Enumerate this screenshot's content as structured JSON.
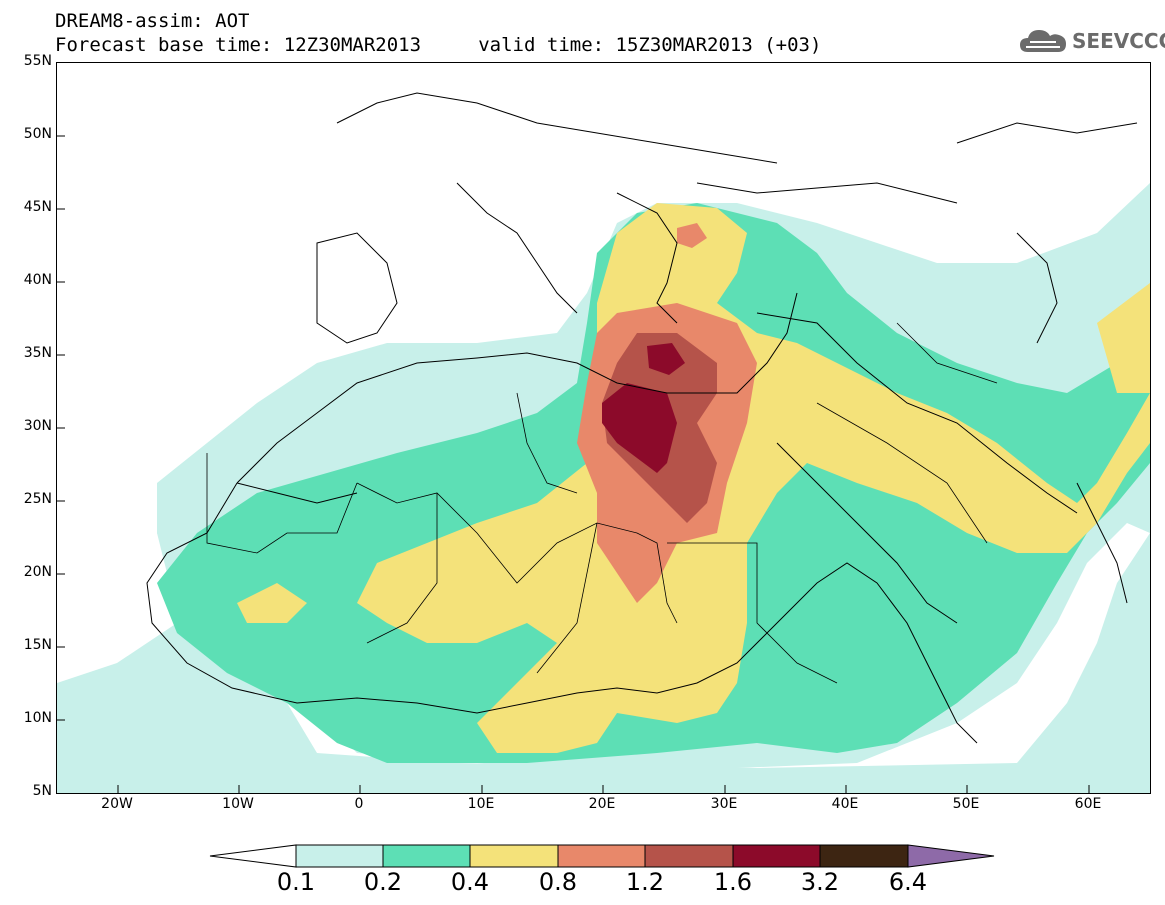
{
  "title": {
    "line1": "DREAM8-assim: AOT",
    "line2": "Forecast base time: 12Z30MAR2013     valid time: 15Z30MAR2013 (+03)"
  },
  "logo": {
    "text": "SEEVCCC",
    "icon": "cloud-logo-icon"
  },
  "map": {
    "lat_labels": [
      "55N",
      "50N",
      "45N",
      "40N",
      "35N",
      "30N",
      "25N",
      "20N",
      "15N",
      "10N",
      "5N"
    ],
    "lon_labels": [
      "20W",
      "10W",
      "0",
      "10E",
      "20E",
      "30E",
      "40E",
      "50E",
      "60E"
    ],
    "lat_range": [
      5,
      55
    ],
    "lon_range": [
      -25,
      65
    ]
  },
  "colorbar": {
    "labels": [
      "0.1",
      "0.2",
      "0.4",
      "0.8",
      "1.2",
      "1.6",
      "3.2",
      "6.4"
    ],
    "colors": [
      "#ffffff",
      "#c8f0ea",
      "#5ddfb5",
      "#f4e27a",
      "#e8886a",
      "#b5534a",
      "#8c0a2a",
      "#3d2512",
      "#8e6aa8"
    ]
  }
}
